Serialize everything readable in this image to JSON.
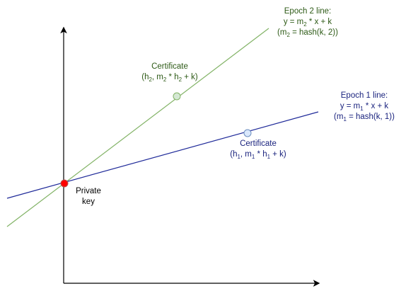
{
  "labels": [
    {
      "lines": [
        [
          {
            "text": "Epoch 2 line:"
          }
        ],
        [
          {
            "text": "y = m"
          },
          {
            "sub": "2"
          },
          {
            "text": " * x + k"
          }
        ],
        [
          {
            "text": "(m"
          },
          {
            "sub": "2"
          },
          {
            "text": " = hash(k, 2))"
          }
        ]
      ]
    },
    {
      "lines": [
        [
          {
            "text": "Certificate"
          }
        ],
        [
          {
            "text": "(h"
          },
          {
            "sub": "2"
          },
          {
            "text": ", m"
          },
          {
            "sub": "2"
          },
          {
            "text": " * h"
          },
          {
            "sub": "2"
          },
          {
            "text": " + k)"
          }
        ]
      ]
    },
    {
      "lines": [
        [
          {
            "text": "Epoch 1 line:"
          }
        ],
        [
          {
            "text": "y = m"
          },
          {
            "sub": "1"
          },
          {
            "text": " * x + k"
          }
        ],
        [
          {
            "text": "(m"
          },
          {
            "sub": "1"
          },
          {
            "text": " = hash(k, 1))"
          }
        ]
      ]
    },
    {
      "lines": [
        [
          {
            "text": "Certificate"
          }
        ],
        [
          {
            "text": "(h"
          },
          {
            "sub": "1"
          },
          {
            "text": ", m"
          },
          {
            "sub": "1"
          },
          {
            "text": " * h"
          },
          {
            "sub": "1"
          },
          {
            "text": " + k)"
          }
        ]
      ]
    },
    {
      "lines": [
        [
          {
            "text": "Private"
          }
        ],
        [
          {
            "text": "key"
          }
        ]
      ]
    }
  ]
}
